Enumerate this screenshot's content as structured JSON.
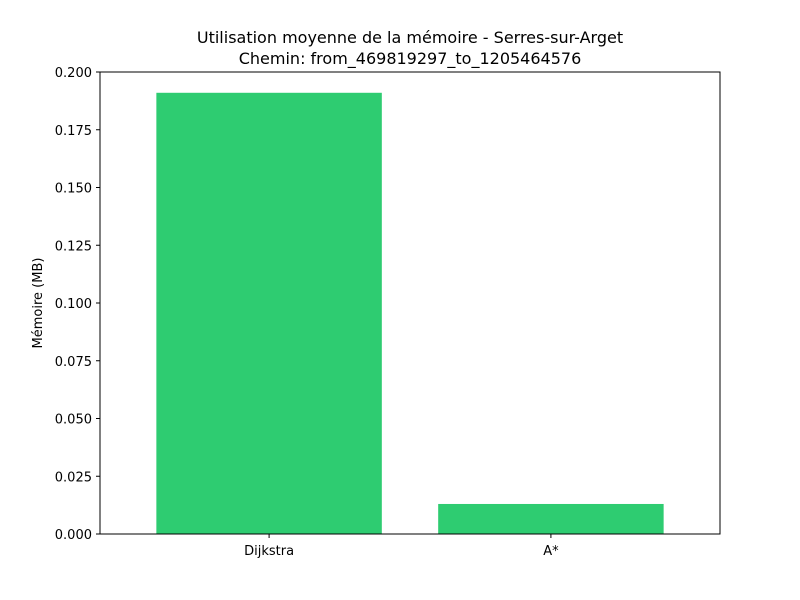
{
  "chart_data": {
    "type": "bar",
    "title": "Utilisation moyenne de la mémoire - Serres-sur-Arget",
    "subtitle": "Chemin: from_469819297_to_1205464576",
    "xlabel": "",
    "ylabel": "Mémoire (MB)",
    "categories": [
      "Dijkstra",
      "A*"
    ],
    "values": [
      0.191,
      0.013
    ],
    "ylim": [
      0,
      0.2
    ],
    "yticks": [
      "0.000",
      "0.025",
      "0.050",
      "0.075",
      "0.100",
      "0.125",
      "0.150",
      "0.175",
      "0.200"
    ],
    "bar_color": "#2ecc71",
    "grid": false
  }
}
